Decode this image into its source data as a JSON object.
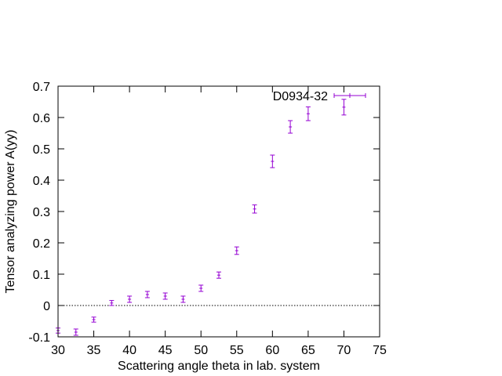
{
  "chart_data": {
    "type": "scatter",
    "title": "",
    "xlabel": "Scattering angle theta in lab. system",
    "ylabel": "Tensor analyzing power A(yy)",
    "xlim": [
      30,
      75
    ],
    "ylim": [
      -0.1,
      0.7
    ],
    "x_ticks": [
      30,
      35,
      40,
      45,
      50,
      55,
      60,
      65,
      70,
      75
    ],
    "y_ticks": [
      -0.1,
      0,
      0.1,
      0.2,
      0.3,
      0.4,
      0.5,
      0.6,
      0.7
    ],
    "x_tick_labels": [
      "30",
      "35",
      "40",
      "45",
      "50",
      "55",
      "60",
      "65",
      "70",
      "75"
    ],
    "y_tick_labels": [
      "-0.1",
      "0",
      "0.1",
      "0.2",
      "0.3",
      "0.4",
      "0.5",
      "0.6",
      "0.7"
    ],
    "grid": false,
    "reference_line": {
      "y": 0,
      "style": "dotted"
    },
    "legend_position": "top-right",
    "series": [
      {
        "name": "D0934-32",
        "color": "#9400d3",
        "marker": "errorbar",
        "x": [
          30.0,
          32.5,
          35.0,
          37.5,
          40.0,
          42.5,
          45.0,
          47.5,
          50.0,
          52.5,
          55.0,
          57.5,
          60.0,
          62.5,
          65.0,
          70.0
        ],
        "y": [
          -0.08,
          -0.085,
          -0.045,
          0.008,
          0.02,
          0.035,
          0.03,
          0.02,
          0.055,
          0.097,
          0.175,
          0.308,
          0.46,
          0.57,
          0.612,
          0.633
        ],
        "err": [
          0.008,
          0.01,
          0.008,
          0.008,
          0.01,
          0.01,
          0.01,
          0.01,
          0.01,
          0.01,
          0.012,
          0.013,
          0.02,
          0.02,
          0.022,
          0.025
        ]
      }
    ]
  }
}
